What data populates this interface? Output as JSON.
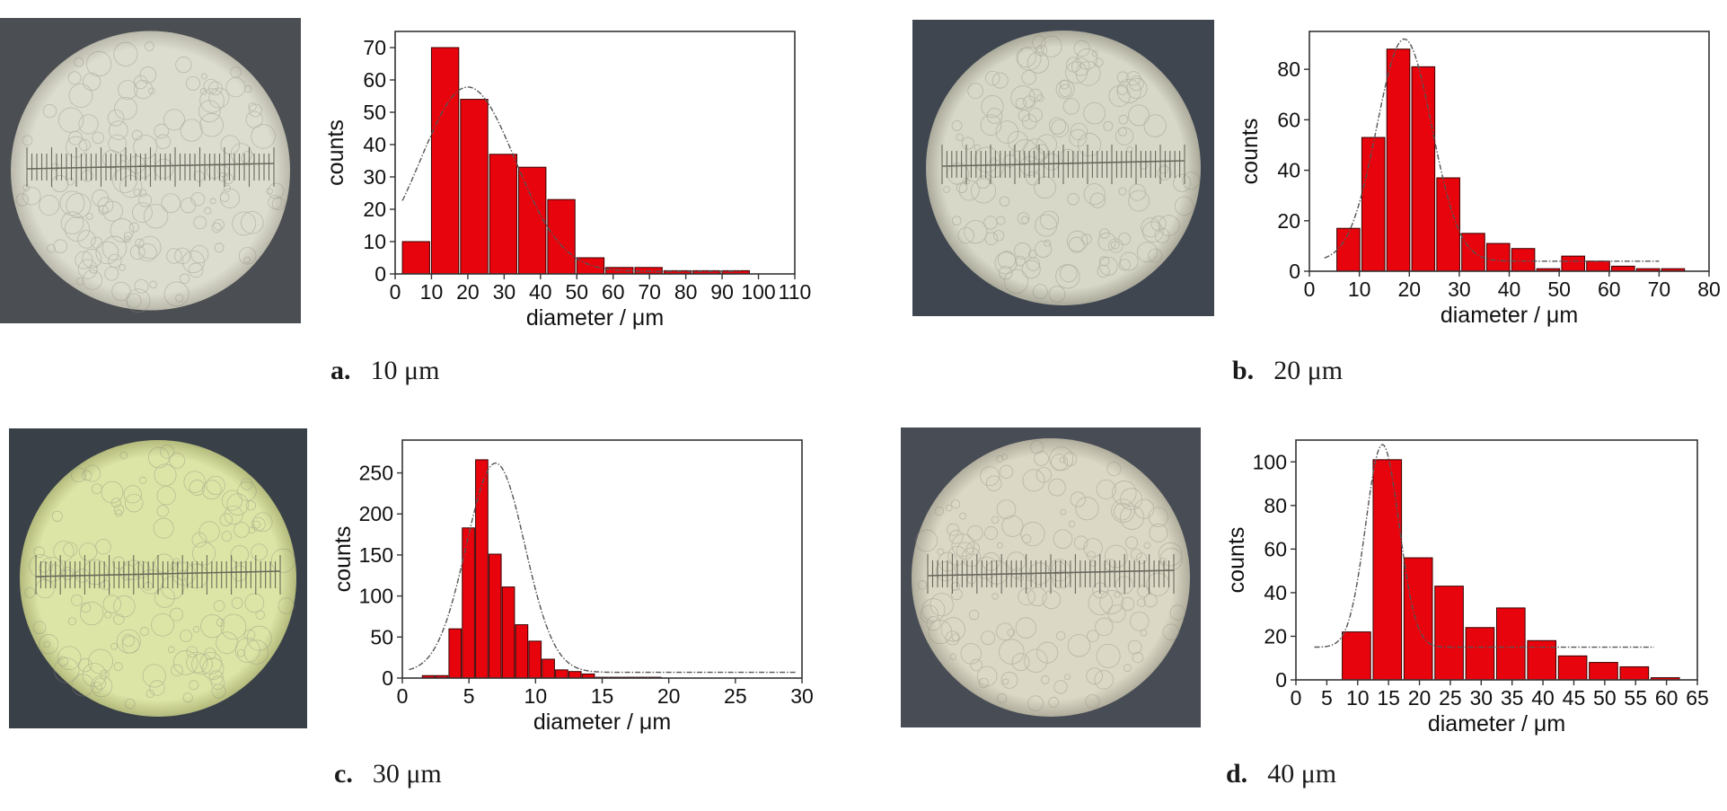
{
  "panels": [
    {
      "caption_letter": "a.",
      "caption_text": "10 μm",
      "micro_colors": {
        "bg": "#4b4e52",
        "disc": "#ddddcf",
        "edge": "#b9b8aa"
      },
      "chart_data": {
        "type": "bar",
        "xlabel": "diameter / μm",
        "ylabel": "counts",
        "xlim": [
          0,
          110
        ],
        "ylim": [
          0,
          75
        ],
        "xticks": [
          0,
          10,
          20,
          30,
          40,
          50,
          60,
          70,
          80,
          90,
          100,
          110
        ],
        "xtick_labels": [
          "0",
          "10",
          "20",
          "30",
          "40",
          "50",
          "60",
          "70",
          "80",
          "90",
          "100",
          "110"
        ],
        "yticks": [
          0,
          10,
          20,
          30,
          40,
          50,
          60,
          70
        ],
        "ytick_labels": [
          "0",
          "10",
          "20",
          "30",
          "40",
          "50",
          "60",
          "70"
        ],
        "bin_width": 7.5,
        "bins": [
          2,
          10,
          18,
          26,
          34,
          42,
          50,
          58,
          66,
          74,
          82,
          90
        ],
        "values": [
          10,
          70,
          54,
          37,
          33,
          23,
          5,
          2,
          2,
          1,
          1,
          1
        ],
        "fit": {
          "mu": 20,
          "sigma": 13,
          "amp": 57,
          "base": 0.8,
          "x_from": 2,
          "x_to": 95
        },
        "bar_color": "#e8040d"
      }
    },
    {
      "caption_letter": "b.",
      "caption_text": "20 μm",
      "micro_colors": {
        "bg": "#3f4650",
        "disc": "#d8d8c8",
        "edge": "#aaa99a"
      },
      "chart_data": {
        "type": "bar",
        "xlabel": "diameter / μm",
        "ylabel": "counts",
        "xlim": [
          0,
          80
        ],
        "ylim": [
          0,
          95
        ],
        "xticks": [
          0,
          10,
          20,
          30,
          40,
          50,
          60,
          70,
          80
        ],
        "xtick_labels": [
          "0",
          "10",
          "20",
          "30",
          "40",
          "50",
          "60",
          "70",
          "80"
        ],
        "yticks": [
          0,
          20,
          40,
          60,
          80
        ],
        "ytick_labels": [
          "0",
          "20",
          "40",
          "60",
          "80"
        ],
        "bin_width": 4.6,
        "bins": [
          5.5,
          10.5,
          15.5,
          20.5,
          25.5,
          30.5,
          35.5,
          40.5,
          45.5,
          50.5,
          55.5,
          60.5,
          65.5,
          70.5
        ],
        "values": [
          17,
          53,
          88,
          81,
          37,
          15,
          11,
          9,
          1,
          6,
          4,
          2,
          1,
          1
        ],
        "fit": {
          "mu": 19,
          "sigma": 5.5,
          "amp": 88,
          "base": 4,
          "x_from": 3,
          "x_to": 70
        },
        "bar_color": "#e8040d"
      }
    },
    {
      "caption_letter": "c.",
      "caption_text": "30 μm",
      "micro_colors": {
        "bg": "#3a4048",
        "disc": "#dde5a6",
        "edge": "#b3ba7c"
      },
      "chart_data": {
        "type": "bar",
        "xlabel": "diameter / μm",
        "ylabel": "counts",
        "xlim": [
          0,
          30
        ],
        "ylim": [
          0,
          290
        ],
        "xticks": [
          0,
          5,
          10,
          15,
          20,
          25,
          30
        ],
        "xtick_labels": [
          "0",
          "5",
          "10",
          "15",
          "20",
          "25",
          "30"
        ],
        "yticks": [
          0,
          50,
          100,
          150,
          200,
          250
        ],
        "ytick_labels": [
          "0",
          "50",
          "100",
          "150",
          "200",
          "250"
        ],
        "bin_width": 0.92,
        "bins": [
          1.5,
          2.5,
          3.5,
          4.5,
          5.5,
          6.5,
          7.5,
          8.5,
          9.5,
          10.5,
          11.5,
          12.5,
          13.5,
          14.5,
          15.5,
          16.5,
          17.5,
          18.5
        ],
        "values": [
          3,
          3,
          60,
          183,
          266,
          151,
          111,
          65,
          45,
          23,
          10,
          8,
          5,
          1,
          1,
          1,
          1,
          1
        ],
        "fit": {
          "mu": 7,
          "sigma": 2.2,
          "amp": 255,
          "base": 7,
          "x_from": 0.5,
          "x_to": 29.5
        },
        "bar_color": "#e8040d"
      }
    },
    {
      "caption_letter": "d.",
      "caption_text": "40 μm",
      "micro_colors": {
        "bg": "#474c55",
        "disc": "#dcd8c6",
        "edge": "#b1ad9c"
      },
      "chart_data": {
        "type": "bar",
        "xlabel": "diameter / μm",
        "ylabel": "counts",
        "xlim": [
          0,
          65
        ],
        "ylim": [
          0,
          110
        ],
        "xticks": [
          0,
          5,
          10,
          15,
          20,
          25,
          30,
          35,
          40,
          45,
          50,
          55,
          60,
          65
        ],
        "xtick_labels": [
          "0",
          "5",
          "10",
          "15",
          "20",
          "25",
          "30",
          "35",
          "40",
          "45",
          "50",
          "55",
          "60",
          "65"
        ],
        "yticks": [
          0,
          20,
          40,
          60,
          80,
          100
        ],
        "ytick_labels": [
          "0",
          "20",
          "40",
          "60",
          "80",
          "100"
        ],
        "bin_width": 4.6,
        "bins": [
          7.5,
          12.5,
          17.5,
          22.5,
          27.5,
          32.5,
          37.5,
          42.5,
          47.5,
          52.5,
          57.5
        ],
        "values": [
          22,
          101,
          56,
          43,
          24,
          33,
          18,
          11,
          8,
          6,
          1
        ],
        "fit": {
          "mu": 14,
          "sigma": 2.7,
          "amp": 93,
          "base": 15,
          "x_from": 3,
          "x_to": 58
        },
        "bar_color": "#e8040d"
      }
    }
  ]
}
